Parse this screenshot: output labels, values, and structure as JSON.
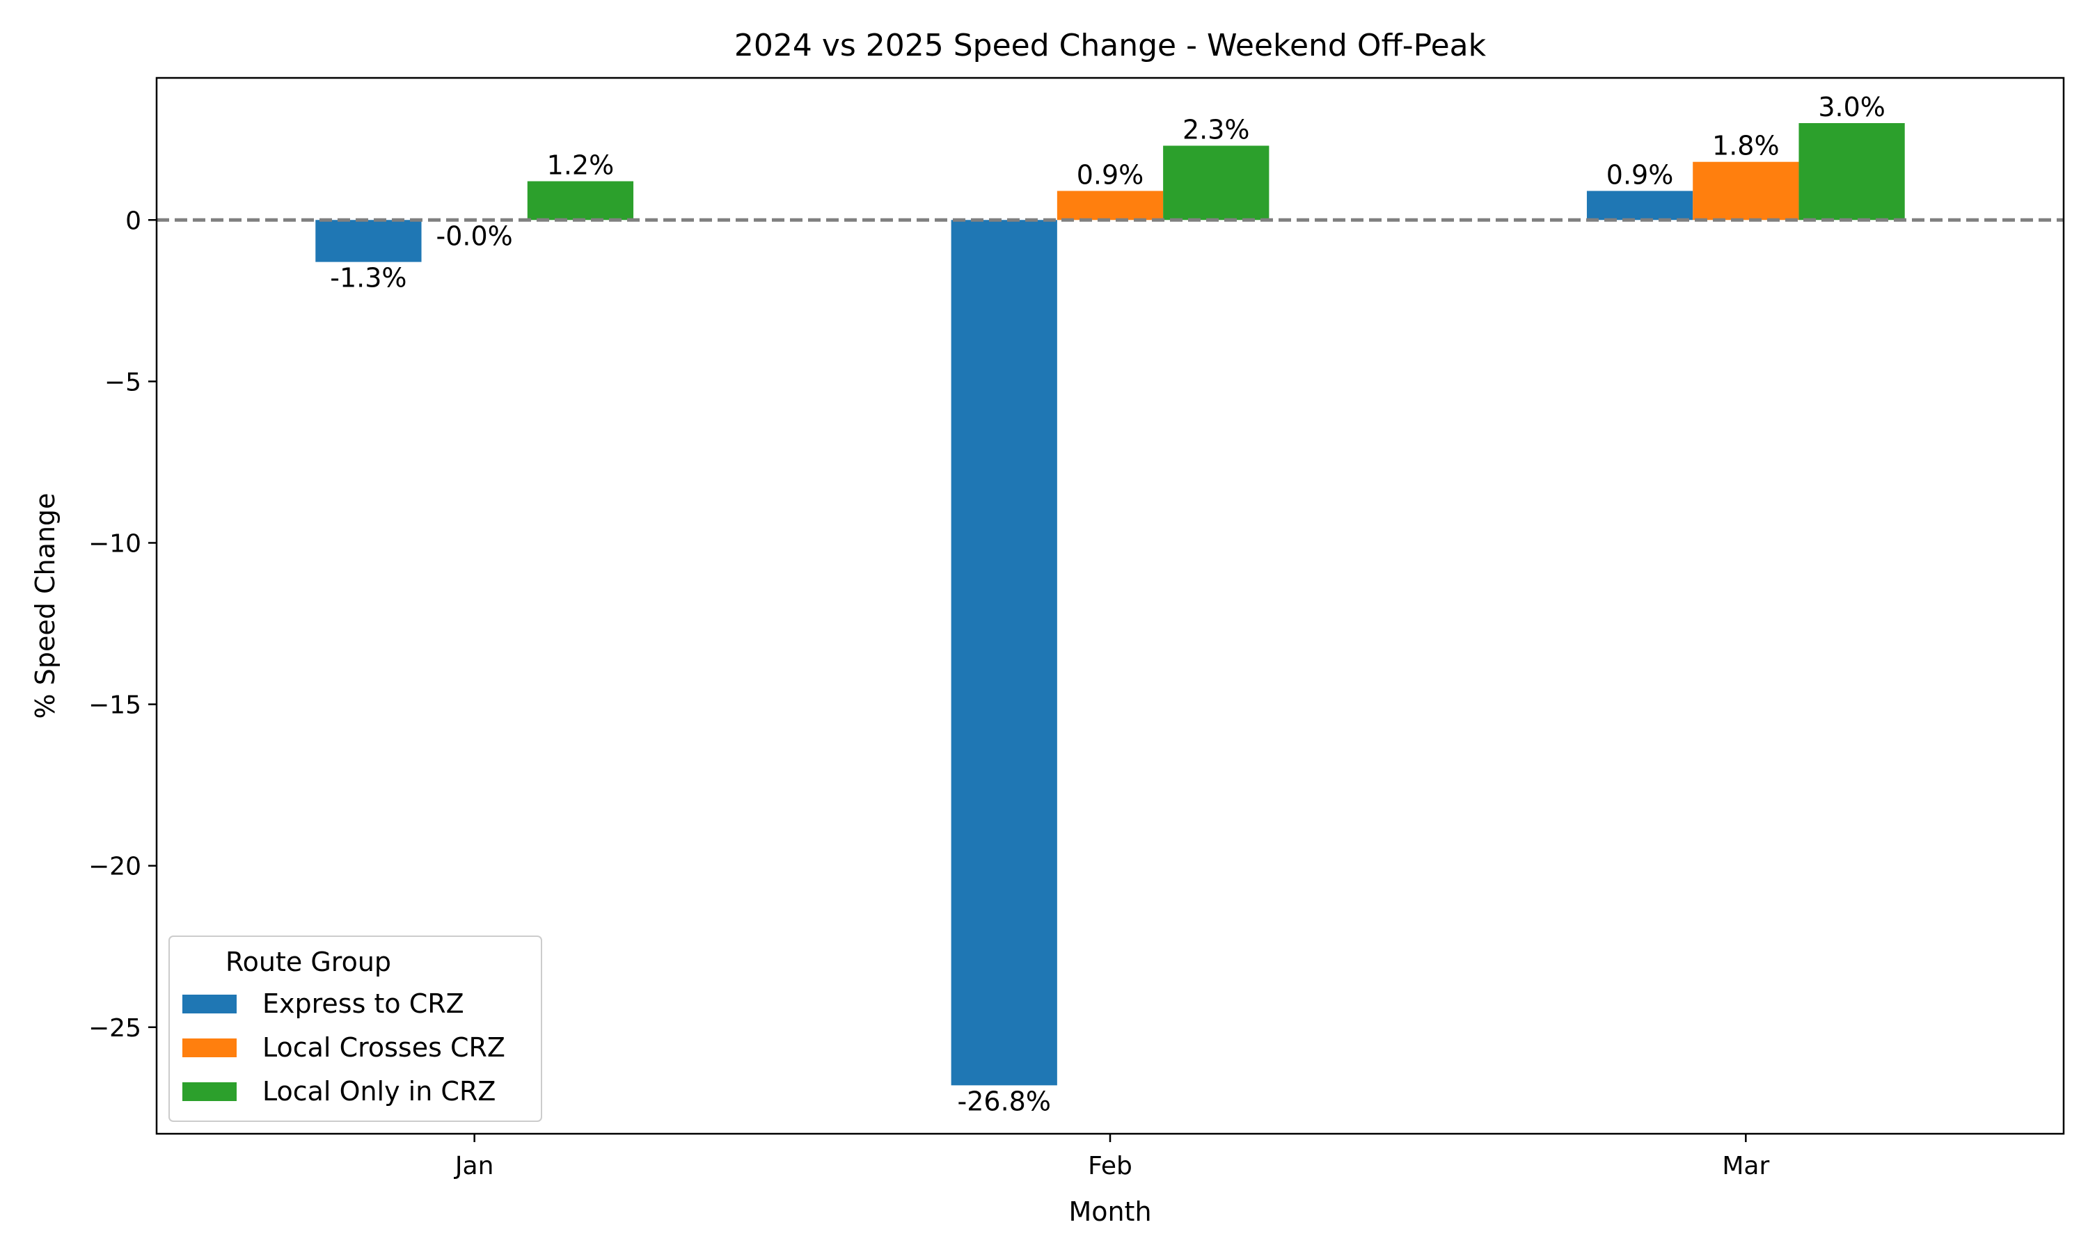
{
  "chart_data": {
    "type": "bar",
    "title": "2024 vs 2025 Speed Change - Weekend Off-Peak",
    "xlabel": "Month",
    "ylabel": "% Speed Change",
    "categories": [
      "Jan",
      "Feb",
      "Mar"
    ],
    "ylim": [
      -28.3,
      4.4
    ],
    "yticks": [
      0,
      -5,
      -10,
      -15,
      -20,
      -25
    ],
    "ytick_labels": [
      "0",
      "−5",
      "−10",
      "−15",
      "−20",
      "−25"
    ],
    "reference_line": {
      "y": 0,
      "style": "dashed",
      "color": "#808080"
    },
    "grid": false,
    "legend": {
      "title": "Route Group",
      "placement": "lower-left"
    },
    "series": [
      {
        "name": "Express to CRZ",
        "color": "#1f77b4",
        "values": [
          -1.3,
          -26.8,
          0.9
        ],
        "labels": [
          "-1.3%",
          "-26.8%",
          "0.9%"
        ]
      },
      {
        "name": "Local Crosses CRZ",
        "color": "#ff7f0e",
        "values": [
          -0.0,
          0.9,
          1.8
        ],
        "labels": [
          "-0.0%",
          "0.9%",
          "1.8%"
        ]
      },
      {
        "name": "Local Only in CRZ",
        "color": "#2ca02c",
        "values": [
          1.2,
          2.3,
          3.0
        ],
        "labels": [
          "1.2%",
          "2.3%",
          "3.0%"
        ]
      }
    ]
  }
}
